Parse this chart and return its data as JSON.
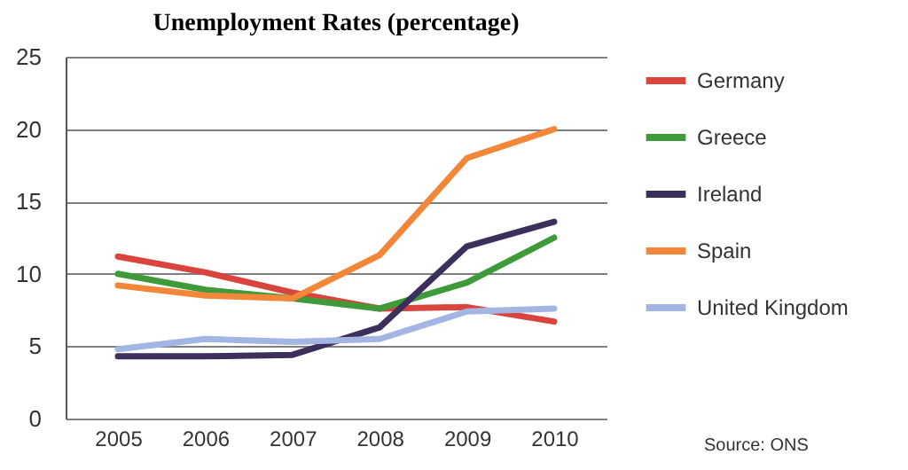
{
  "chart_data": {
    "type": "line",
    "title": "Unemployment Rates (percentage)",
    "categories": [
      "2005",
      "2006",
      "2007",
      "2008",
      "2009",
      "2010"
    ],
    "series": [
      {
        "name": "Germany",
        "color": "#d9453d",
        "values": [
          11.2,
          10.1,
          8.7,
          7.6,
          7.7,
          6.7
        ]
      },
      {
        "name": "Greece",
        "color": "#3f9a3a",
        "values": [
          10.0,
          8.9,
          8.3,
          7.6,
          9.4,
          12.5
        ]
      },
      {
        "name": "Ireland",
        "color": "#3d2f5c",
        "values": [
          4.3,
          4.3,
          4.4,
          6.3,
          11.9,
          13.6
        ]
      },
      {
        "name": "Spain",
        "color": "#f2873a",
        "values": [
          9.2,
          8.5,
          8.3,
          11.3,
          18.0,
          20.0
        ]
      },
      {
        "name": "United Kingdom",
        "color": "#a3b6e3",
        "values": [
          4.8,
          5.5,
          5.3,
          5.5,
          7.4,
          7.6
        ]
      }
    ],
    "ylim": [
      0,
      25
    ],
    "yticks": [
      0,
      5,
      10,
      15,
      20,
      25
    ],
    "grid": "y",
    "legend": "right",
    "line_style": "solid",
    "marker": "none",
    "annotations": [
      "Source: ONS"
    ]
  }
}
